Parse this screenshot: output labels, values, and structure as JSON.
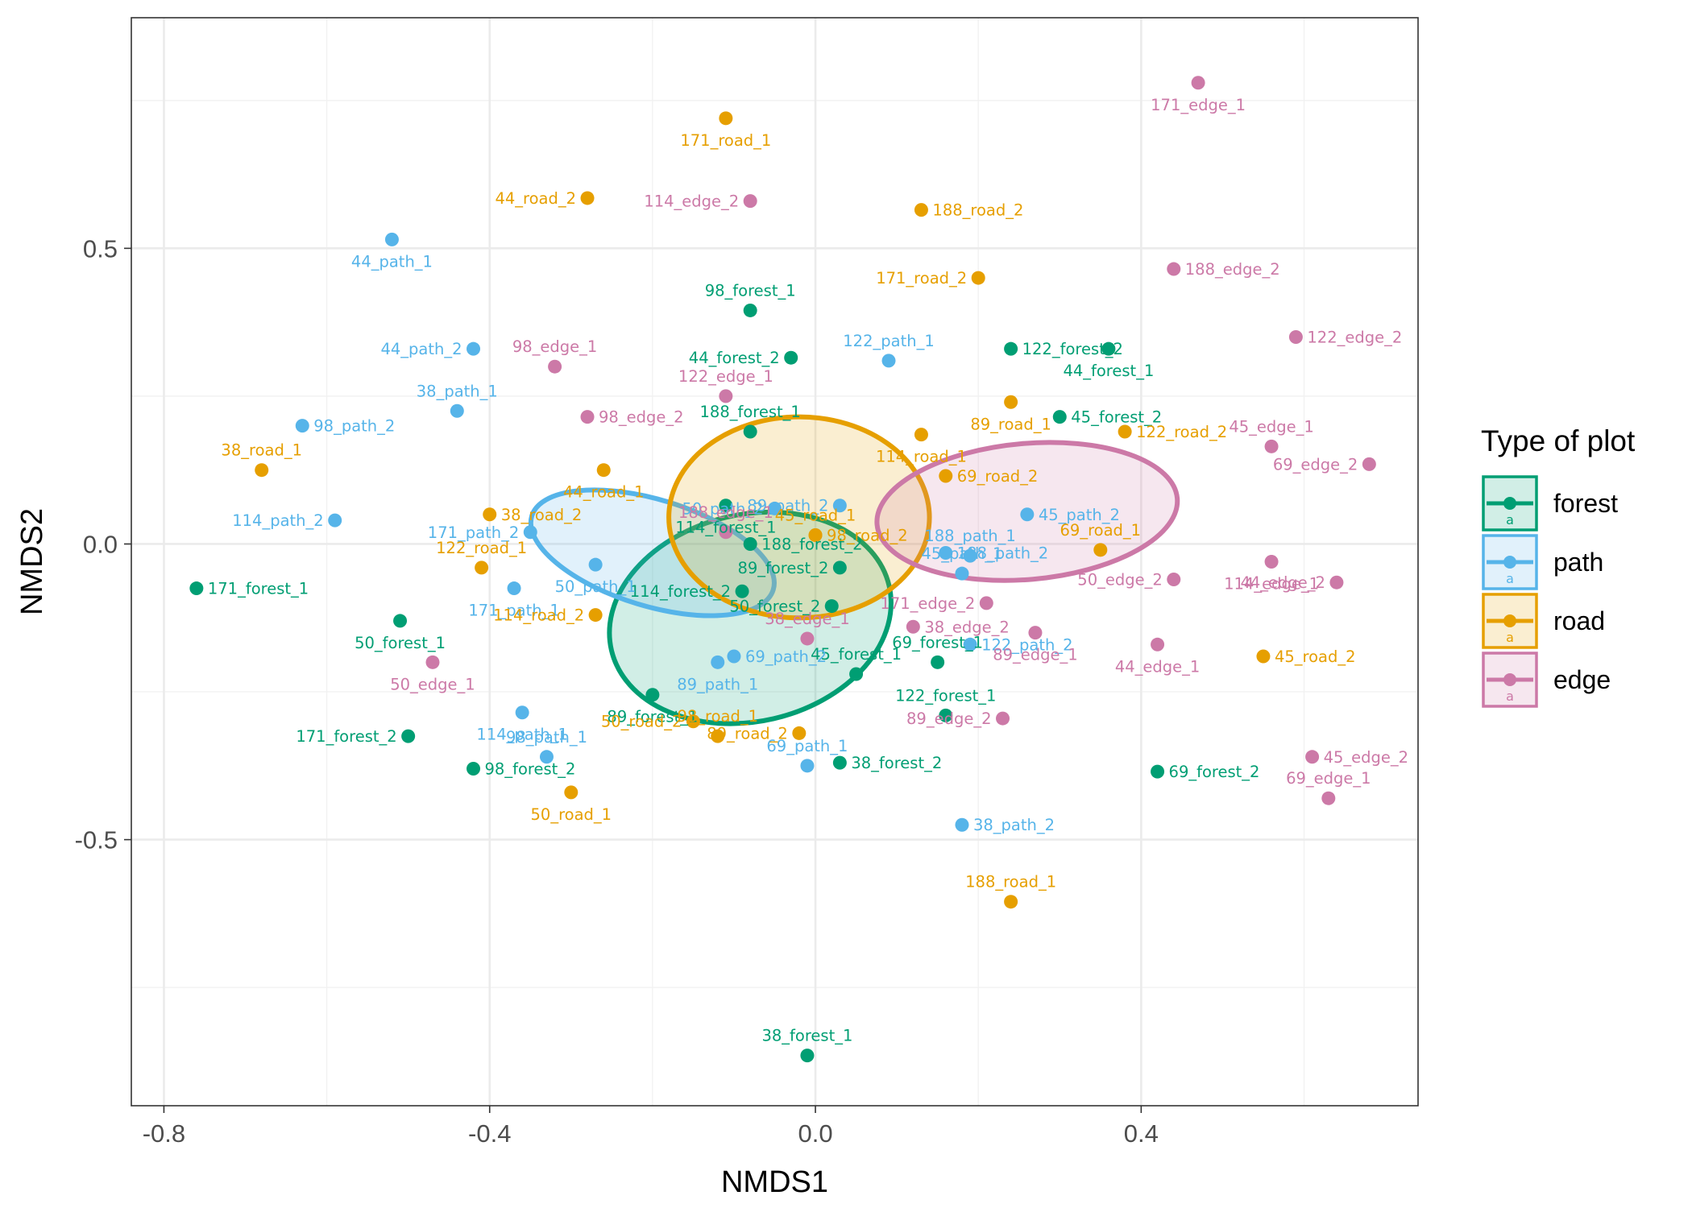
{
  "chart_data": {
    "type": "scatter",
    "title": "",
    "xlabel": "NMDS1",
    "ylabel": "NMDS2",
    "xlim": [
      -0.84,
      0.74
    ],
    "ylim": [
      -0.95,
      0.89
    ],
    "xticks": [
      -0.8,
      -0.4,
      0.0,
      0.4
    ],
    "xtick_labels": [
      "-0.8",
      "-0.4",
      "0.0",
      "0.4"
    ],
    "yticks": [
      -0.5,
      0.0,
      0.5
    ],
    "ytick_labels": [
      "-0.5",
      "0.0",
      "0.5"
    ],
    "grid": true,
    "legend": {
      "title": "Type of plot",
      "position": "right",
      "entries": [
        {
          "name": "forest",
          "color": "#009E73"
        },
        {
          "name": "path",
          "color": "#56B4E9"
        },
        {
          "name": "road",
          "color": "#E69F00"
        },
        {
          "name": "edge",
          "color": "#CC79A7"
        }
      ],
      "key_glyph_text": "a"
    },
    "colors": {
      "forest": "#009E73",
      "path": "#56B4E9",
      "road": "#E69F00",
      "edge": "#CC79A7"
    },
    "ellipses": [
      {
        "group": "forest",
        "cx": -0.08,
        "cy": -0.125,
        "rx": 0.175,
        "ry": 0.175,
        "angle_deg": -13
      },
      {
        "group": "path",
        "cx": -0.2,
        "cy": -0.015,
        "rx": 0.155,
        "ry": 0.09,
        "angle_deg": 17
      },
      {
        "group": "road",
        "cx": -0.02,
        "cy": 0.045,
        "rx": 0.16,
        "ry": 0.17,
        "angle_deg": 0
      },
      {
        "group": "edge",
        "cx": 0.26,
        "cy": 0.055,
        "rx": 0.185,
        "ry": 0.115,
        "angle_deg": -5
      }
    ],
    "series": [
      {
        "name": "forest",
        "points": [
          {
            "label": "38_forest_1",
            "x": -0.01,
            "y": -0.865
          },
          {
            "label": "38_forest_2",
            "x": 0.03,
            "y": -0.37
          },
          {
            "label": "44_forest_1",
            "x": 0.36,
            "y": 0.33
          },
          {
            "label": "44_forest_2",
            "x": -0.03,
            "y": 0.315
          },
          {
            "label": "45_forest_1",
            "x": 0.05,
            "y": -0.22
          },
          {
            "label": "45_forest_2",
            "x": 0.3,
            "y": 0.215
          },
          {
            "label": "50_forest_1",
            "x": -0.51,
            "y": -0.13
          },
          {
            "label": "50_forest_2",
            "x": 0.02,
            "y": -0.105
          },
          {
            "label": "69_forest_1",
            "x": 0.15,
            "y": -0.2
          },
          {
            "label": "69_forest_2",
            "x": 0.42,
            "y": -0.385
          },
          {
            "label": "89_forest_1",
            "x": -0.2,
            "y": -0.255
          },
          {
            "label": "89_forest_2",
            "x": 0.03,
            "y": -0.04
          },
          {
            "label": "98_forest_1",
            "x": -0.08,
            "y": 0.395
          },
          {
            "label": "98_forest_2",
            "x": -0.42,
            "y": -0.38
          },
          {
            "label": "114_forest_1",
            "x": -0.11,
            "y": 0.065
          },
          {
            "label": "114_forest_2",
            "x": -0.09,
            "y": -0.08
          },
          {
            "label": "122_forest_1",
            "x": 0.16,
            "y": -0.29
          },
          {
            "label": "122_forest_2",
            "x": 0.24,
            "y": 0.33
          },
          {
            "label": "171_forest_1",
            "x": -0.76,
            "y": -0.075
          },
          {
            "label": "171_forest_2",
            "x": -0.5,
            "y": -0.325
          },
          {
            "label": "188_forest_1",
            "x": -0.08,
            "y": 0.19
          },
          {
            "label": "188_forest_2",
            "x": -0.08,
            "y": 0.0
          }
        ]
      },
      {
        "name": "path",
        "points": [
          {
            "label": "38_path_1",
            "x": -0.44,
            "y": 0.225
          },
          {
            "label": "38_path_2",
            "x": 0.18,
            "y": -0.475
          },
          {
            "label": "44_path_1",
            "x": -0.52,
            "y": 0.515
          },
          {
            "label": "44_path_2",
            "x": -0.42,
            "y": 0.33
          },
          {
            "label": "45_path_1",
            "x": 0.18,
            "y": -0.05
          },
          {
            "label": "45_path_2",
            "x": 0.26,
            "y": 0.05
          },
          {
            "label": "50_path_1",
            "x": -0.27,
            "y": -0.035
          },
          {
            "label": "50_path_2",
            "x": -0.05,
            "y": 0.06
          },
          {
            "label": "69_path_1",
            "x": -0.01,
            "y": -0.375
          },
          {
            "label": "69_path_2",
            "x": -0.1,
            "y": -0.19
          },
          {
            "label": "89_path_1",
            "x": -0.12,
            "y": -0.2
          },
          {
            "label": "89_path_2",
            "x": 0.03,
            "y": 0.065
          },
          {
            "label": "98_path_1",
            "x": -0.33,
            "y": -0.36
          },
          {
            "label": "98_path_2",
            "x": -0.63,
            "y": 0.2
          },
          {
            "label": "114_path_1",
            "x": -0.36,
            "y": -0.285
          },
          {
            "label": "114_path_2",
            "x": -0.59,
            "y": 0.04
          },
          {
            "label": "122_path_1",
            "x": 0.09,
            "y": 0.31
          },
          {
            "label": "122_path_2",
            "x": 0.19,
            "y": -0.17
          },
          {
            "label": "171_path_1",
            "x": -0.37,
            "y": -0.075
          },
          {
            "label": "171_path_2",
            "x": -0.35,
            "y": 0.02
          },
          {
            "label": "188_path_1",
            "x": 0.19,
            "y": -0.02
          },
          {
            "label": "188_path_2",
            "x": 0.16,
            "y": -0.015
          }
        ]
      },
      {
        "name": "road",
        "points": [
          {
            "label": "38_road_1",
            "x": -0.68,
            "y": 0.125
          },
          {
            "label": "38_road_2",
            "x": -0.4,
            "y": 0.05
          },
          {
            "label": "44_road_1",
            "x": -0.26,
            "y": 0.125
          },
          {
            "label": "44_road_2",
            "x": -0.28,
            "y": 0.585
          },
          {
            "label": "45_road_1",
            "x": 0.0,
            "y": 0.015
          },
          {
            "label": "45_road_2",
            "x": 0.55,
            "y": -0.19
          },
          {
            "label": "50_road_1",
            "x": -0.3,
            "y": -0.42
          },
          {
            "label": "50_road_2",
            "x": -0.15,
            "y": -0.3
          },
          {
            "label": "69_road_1",
            "x": 0.35,
            "y": -0.01
          },
          {
            "label": "69_road_2",
            "x": 0.16,
            "y": 0.115
          },
          {
            "label": "89_road_1",
            "x": 0.24,
            "y": 0.24
          },
          {
            "label": "89_road_2",
            "x": -0.02,
            "y": -0.32
          },
          {
            "label": "98_road_1",
            "x": -0.12,
            "y": -0.325
          },
          {
            "label": "98_road_2",
            "x": 0.0,
            "y": 0.015
          },
          {
            "label": "114_road_1",
            "x": 0.13,
            "y": 0.185
          },
          {
            "label": "114_road_2",
            "x": -0.27,
            "y": -0.12
          },
          {
            "label": "122_road_1",
            "x": -0.41,
            "y": -0.04
          },
          {
            "label": "122_road_2",
            "x": 0.38,
            "y": 0.19
          },
          {
            "label": "171_road_1",
            "x": -0.11,
            "y": 0.72
          },
          {
            "label": "171_road_2",
            "x": 0.2,
            "y": 0.45
          },
          {
            "label": "188_road_1",
            "x": 0.24,
            "y": -0.605
          },
          {
            "label": "188_road_2",
            "x": 0.13,
            "y": 0.565
          }
        ]
      },
      {
        "name": "edge",
        "points": [
          {
            "label": "38_edge_1",
            "x": -0.01,
            "y": -0.16
          },
          {
            "label": "38_edge_2",
            "x": 0.12,
            "y": -0.14
          },
          {
            "label": "44_edge_1",
            "x": 0.42,
            "y": -0.17
          },
          {
            "label": "44_edge_2",
            "x": 0.64,
            "y": -0.065
          },
          {
            "label": "45_edge_1",
            "x": 0.56,
            "y": 0.165
          },
          {
            "label": "45_edge_2",
            "x": 0.61,
            "y": -0.36
          },
          {
            "label": "50_edge_1",
            "x": -0.47,
            "y": -0.2
          },
          {
            "label": "50_edge_2",
            "x": 0.44,
            "y": -0.06
          },
          {
            "label": "69_edge_1",
            "x": 0.63,
            "y": -0.43
          },
          {
            "label": "69_edge_2",
            "x": 0.68,
            "y": 0.135
          },
          {
            "label": "89_edge_1",
            "x": 0.27,
            "y": -0.15
          },
          {
            "label": "89_edge_2",
            "x": 0.23,
            "y": -0.295
          },
          {
            "label": "98_edge_1",
            "x": -0.32,
            "y": 0.3
          },
          {
            "label": "98_edge_2",
            "x": -0.28,
            "y": 0.215
          },
          {
            "label": "114_edge_1",
            "x": 0.56,
            "y": -0.03
          },
          {
            "label": "114_edge_2",
            "x": -0.08,
            "y": 0.58
          },
          {
            "label": "122_edge_1",
            "x": -0.11,
            "y": 0.25
          },
          {
            "label": "122_edge_2",
            "x": 0.59,
            "y": 0.35
          },
          {
            "label": "171_edge_1",
            "x": 0.47,
            "y": 0.78
          },
          {
            "label": "171_edge_2",
            "x": 0.21,
            "y": -0.1
          },
          {
            "label": "188_edge_1",
            "x": -0.11,
            "y": 0.02
          },
          {
            "label": "188_edge_2",
            "x": 0.44,
            "y": 0.465
          }
        ]
      }
    ]
  }
}
